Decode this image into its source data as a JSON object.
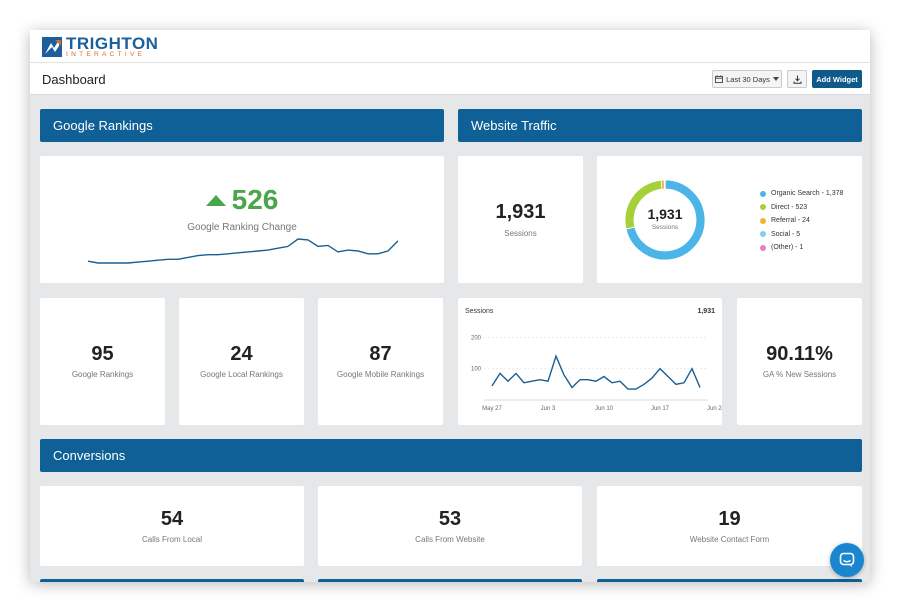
{
  "brand": {
    "name": "TRIGHTON",
    "tagline": "INTERACTIVE"
  },
  "header": {
    "title": "Dashboard",
    "date_range": "Last 30 Days",
    "add_widget": "Add Widget"
  },
  "sections": {
    "google_rankings": "Google Rankings",
    "website_traffic": "Website Traffic",
    "conversions": "Conversions"
  },
  "ranking_change": {
    "value": "526",
    "label": "Google Ranking Change"
  },
  "sessions": {
    "value": "1,931",
    "label": "Sessions"
  },
  "donut": {
    "center_value": "1,931",
    "center_label": "Sessions",
    "legend": [
      {
        "label": "Organic Search - 1,378",
        "value": 1378,
        "color": "#4ab5e6"
      },
      {
        "label": "Direct - 523",
        "value": 523,
        "color": "#a6d03a"
      },
      {
        "label": "Referral - 24",
        "value": 24,
        "color": "#f2b32f"
      },
      {
        "label": "Social - 5",
        "value": 5,
        "color": "#7fd2ea"
      },
      {
        "label": "(Other) - 1",
        "value": 1,
        "color": "#e87fc1"
      }
    ]
  },
  "metrics": [
    {
      "value": "95",
      "label": "Google Rankings"
    },
    {
      "value": "24",
      "label": "Google Local Rankings"
    },
    {
      "value": "87",
      "label": "Google Mobile Rankings"
    }
  ],
  "new_sessions": {
    "value": "90.11%",
    "label": "GA % New Sessions"
  },
  "conversions": [
    {
      "value": "54",
      "label": "Calls From Local"
    },
    {
      "value": "53",
      "label": "Calls From Website"
    },
    {
      "value": "19",
      "label": "Website Contact Form"
    }
  ],
  "chart_data": {
    "type": "line",
    "title": "Sessions",
    "total": "1,931",
    "x_tick_labels": [
      "May 27",
      "Jun 3",
      "Jun 10",
      "Jun 17",
      "Jun 24"
    ],
    "y_ticks": [
      100,
      200
    ],
    "ylim": [
      0,
      230
    ],
    "values": [
      45,
      85,
      60,
      85,
      55,
      60,
      65,
      60,
      140,
      80,
      40,
      65,
      65,
      60,
      75,
      55,
      60,
      35,
      35,
      50,
      70,
      100,
      75,
      50,
      55,
      100,
      40
    ],
    "color": "#1a5f92"
  },
  "sparkline": {
    "values": [
      34,
      32,
      32,
      32,
      32,
      33,
      34,
      35,
      36,
      36,
      38,
      40,
      41,
      41,
      42,
      43,
      44,
      45,
      46,
      48,
      50,
      58,
      57,
      50,
      51,
      44,
      46,
      45,
      42,
      42,
      45,
      56
    ],
    "color": "#1a5f92"
  }
}
